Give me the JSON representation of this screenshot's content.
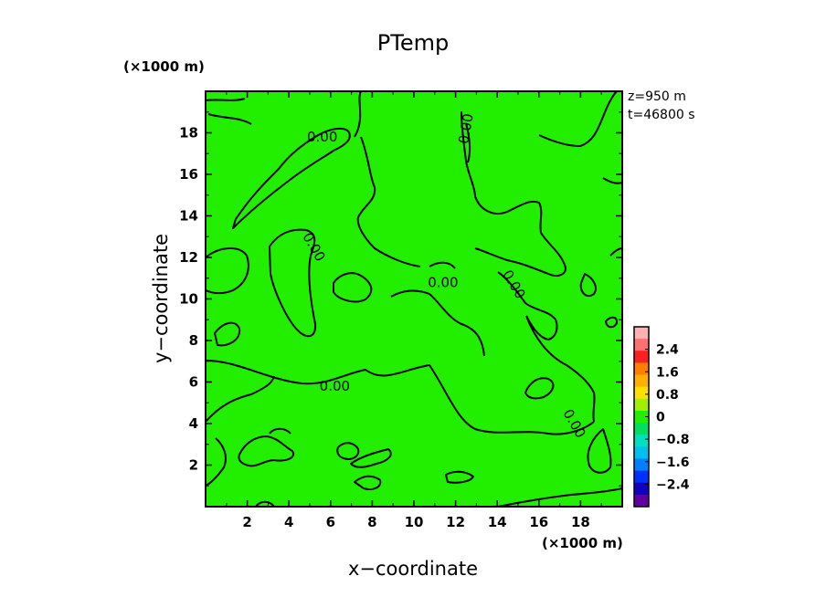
{
  "chart_data": {
    "type": "heatmap",
    "title": "PTemp",
    "xlabel": "x−coordinate",
    "ylabel": "y−coordinate",
    "x_unit": "(×1000 m)",
    "y_unit": "(×1000 m)",
    "info_lines": [
      "z=950 m",
      "t=46800 s"
    ],
    "xlim": [
      0,
      20
    ],
    "ylim": [
      0,
      20
    ],
    "x_ticks": [
      2,
      4,
      6,
      8,
      10,
      12,
      14,
      16,
      18
    ],
    "y_ticks": [
      2,
      4,
      6,
      8,
      10,
      12,
      14,
      16,
      18
    ],
    "field_color": "#22ee00",
    "contour_labels": [
      {
        "text": "0.00",
        "x": 5.6,
        "y": 17.8
      },
      {
        "text": "0.00",
        "x": 6.2,
        "y": 5.8
      },
      {
        "text": "0.00",
        "x": 11.4,
        "y": 10.8
      },
      {
        "text": "0.00",
        "x": 12.5,
        "y": 18.2
      },
      {
        "text": "0.00",
        "x": 5.2,
        "y": 12.5
      },
      {
        "text": "0.00",
        "x": 14.8,
        "y": 10.7
      },
      {
        "text": "0.00",
        "x": 17.7,
        "y": 4.0
      }
    ],
    "colorbar": {
      "range": [
        -3.2,
        3.2
      ],
      "tick_values": [
        2.4,
        1.6,
        0.8,
        0,
        -0.8,
        -1.6,
        -2.4
      ],
      "tick_labels": [
        "2.4",
        "1.6",
        "0.8",
        "0",
        "−0.8",
        "−1.6",
        "−2.4"
      ],
      "colors": [
        "#ffb0b0",
        "#ff7070",
        "#ff2020",
        "#ff8000",
        "#ffb000",
        "#ffe000",
        "#a0f000",
        "#22ee00",
        "#00e060",
        "#00e0c0",
        "#00c0f0",
        "#0080ff",
        "#0030ff",
        "#1000c0",
        "#6000a0"
      ]
    }
  }
}
